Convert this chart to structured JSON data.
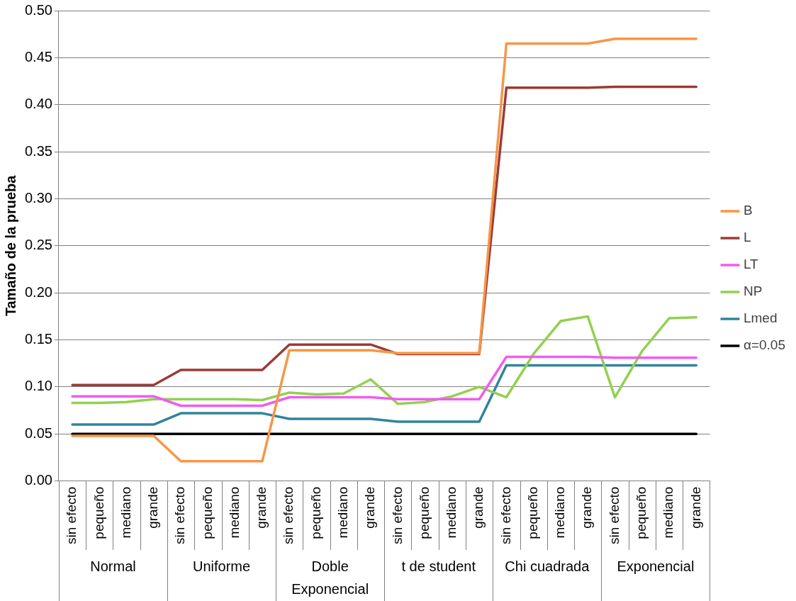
{
  "chart_data": {
    "type": "line",
    "ylabel": "Tamaño de la prueba",
    "categories": [
      "sin efecto",
      "pequeño",
      "mediano",
      "grande",
      "sin efecto",
      "pequeño",
      "mediano",
      "grande",
      "sin efecto",
      "pequeño",
      "mediano",
      "grande",
      "sin efecto",
      "pequeño",
      "mediano",
      "grande",
      "sin efecto",
      "pequeño",
      "mediano",
      "grande",
      "sin efecto",
      "pequeño",
      "mediano",
      "grande"
    ],
    "annotations": [
      "Normal",
      "Uniforme",
      "Doble Exponencial",
      "t de student",
      "Chi cuadrada",
      "Exponencial"
    ],
    "series": [
      {
        "name": "B",
        "color": "#f79646",
        "values": [
          0.048,
          0.048,
          0.048,
          0.048,
          0.021,
          0.021,
          0.021,
          0.021,
          0.139,
          0.139,
          0.139,
          0.139,
          0.136,
          0.136,
          0.136,
          0.136,
          0.465,
          0.465,
          0.465,
          0.465,
          0.47,
          0.47,
          0.47,
          0.47
        ]
      },
      {
        "name": "L",
        "color": "#9b3b37",
        "values": [
          0.102,
          0.102,
          0.102,
          0.102,
          0.118,
          0.118,
          0.118,
          0.118,
          0.145,
          0.145,
          0.145,
          0.145,
          0.135,
          0.135,
          0.135,
          0.135,
          0.418,
          0.418,
          0.418,
          0.418,
          0.419,
          0.419,
          0.419,
          0.419
        ]
      },
      {
        "name": "LT",
        "color": "#f05cf0",
        "values": [
          0.09,
          0.09,
          0.09,
          0.09,
          0.08,
          0.08,
          0.08,
          0.08,
          0.089,
          0.089,
          0.089,
          0.089,
          0.087,
          0.087,
          0.087,
          0.087,
          0.132,
          0.132,
          0.132,
          0.132,
          0.131,
          0.131,
          0.131,
          0.131
        ]
      },
      {
        "name": "NP",
        "color": "#92d050",
        "values": [
          0.083,
          0.083,
          0.084,
          0.087,
          0.087,
          0.087,
          0.087,
          0.086,
          0.094,
          0.092,
          0.093,
          0.108,
          0.082,
          0.084,
          0.09,
          0.1,
          0.089,
          0.135,
          0.17,
          0.175,
          0.089,
          0.138,
          0.173,
          0.174
        ]
      },
      {
        "name": "Lmed",
        "color": "#31849b",
        "values": [
          0.06,
          0.06,
          0.06,
          0.06,
          0.072,
          0.072,
          0.072,
          0.072,
          0.066,
          0.066,
          0.066,
          0.066,
          0.063,
          0.063,
          0.063,
          0.063,
          0.123,
          0.123,
          0.123,
          0.123,
          0.123,
          0.123,
          0.123,
          0.123
        ]
      },
      {
        "name": "α=0.05",
        "color": "#000000",
        "values": [
          0.05,
          0.05,
          0.05,
          0.05,
          0.05,
          0.05,
          0.05,
          0.05,
          0.05,
          0.05,
          0.05,
          0.05,
          0.05,
          0.05,
          0.05,
          0.05,
          0.05,
          0.05,
          0.05,
          0.05,
          0.05,
          0.05,
          0.05,
          0.05
        ]
      }
    ],
    "ylim": [
      0,
      0.5
    ],
    "yticks": [
      {
        "value": 0,
        "label": "0.00"
      },
      {
        "value": 0.05,
        "label": "0.05"
      },
      {
        "value": 0.1,
        "label": "0.10"
      },
      {
        "value": 0.15,
        "label": "0.15"
      },
      {
        "value": 0.2,
        "label": "0.20"
      },
      {
        "value": 0.25,
        "label": "0.25"
      },
      {
        "value": 0.3,
        "label": "0.30"
      },
      {
        "value": 0.35,
        "label": "0.35"
      },
      {
        "value": 0.4,
        "label": "0.40"
      },
      {
        "value": 0.45,
        "label": "0.45"
      },
      {
        "value": 0.5,
        "label": "0.50"
      }
    ],
    "grid": "y",
    "legend": "right",
    "marker": "none",
    "line_style": "solid"
  }
}
